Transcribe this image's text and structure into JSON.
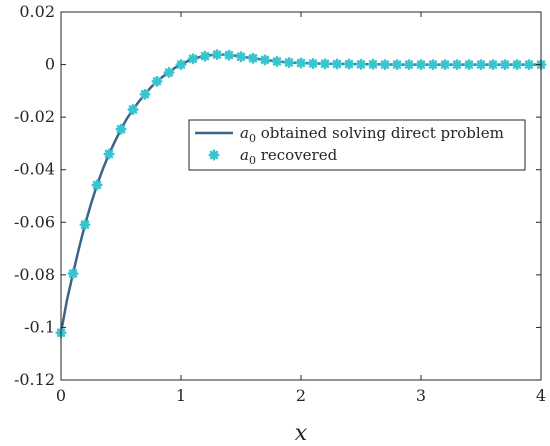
{
  "chart_data": {
    "type": "line",
    "xlabel": "x",
    "ylabel": "",
    "xlim": [
      0,
      4
    ],
    "ylim": [
      -0.12,
      0.02
    ],
    "xticks": [
      0,
      1,
      2,
      3,
      4
    ],
    "yticks": [
      0.02,
      0,
      -0.02,
      -0.04,
      -0.06,
      -0.08,
      -0.1,
      -0.12
    ],
    "xtick_labels": [
      "0",
      "1",
      "2",
      "3",
      "4"
    ],
    "ytick_labels": [
      "0.02",
      "0",
      "-0.02",
      "-0.04",
      "-0.06",
      "-0.08",
      "-0.1",
      "-0.12"
    ],
    "grid": false,
    "legend_position": "center-right",
    "series": [
      {
        "name": "a0 obtained solving direct problem",
        "name_parts": {
          "symbol": "a",
          "subscript": "0",
          "rest": " obtained solving direct problem"
        },
        "style": "line",
        "color": "#3f6384",
        "x": [
          0,
          0.05,
          0.1,
          0.15,
          0.2,
          0.25,
          0.3,
          0.35,
          0.4,
          0.45,
          0.5,
          0.55,
          0.6,
          0.65,
          0.7,
          0.75,
          0.8,
          0.85,
          0.9,
          0.95,
          1.0,
          1.05,
          1.1,
          1.15,
          1.2,
          1.25,
          1.3,
          1.35,
          1.4,
          1.45,
          1.5,
          1.6,
          1.7,
          1.8,
          1.9,
          2.0,
          2.2,
          2.4,
          2.6,
          2.8,
          3.0,
          3.2,
          3.4,
          3.6,
          3.8,
          4.0
        ],
        "y": [
          -0.102,
          -0.0895,
          -0.0795,
          -0.0698,
          -0.0609,
          -0.053,
          -0.0458,
          -0.0396,
          -0.034,
          -0.0292,
          -0.0246,
          -0.0205,
          -0.0171,
          -0.014,
          -0.0113,
          -0.0086,
          -0.0064,
          -0.0045,
          -0.003,
          -0.0012,
          0.0,
          0.0012,
          0.0022,
          0.0028,
          0.0032,
          0.0036,
          0.0038,
          0.0038,
          0.0036,
          0.0034,
          0.003,
          0.0024,
          0.0018,
          0.0012,
          0.0008,
          0.0006,
          0.0003,
          0.0002,
          0.0001,
          0.0,
          0.0,
          0.0,
          0.0,
          0.0,
          0.0,
          0.0
        ]
      },
      {
        "name": "a0 recovered",
        "name_parts": {
          "symbol": "a",
          "subscript": "0",
          "rest": " recovered"
        },
        "style": "markers",
        "marker": "asterisk",
        "color": "#36c5d1",
        "x": [
          0,
          0.1,
          0.2,
          0.3,
          0.4,
          0.5,
          0.6,
          0.7,
          0.8,
          0.9,
          1.0,
          1.1,
          1.2,
          1.3,
          1.4,
          1.5,
          1.6,
          1.7,
          1.8,
          1.9,
          2.0,
          2.1,
          2.2,
          2.3,
          2.4,
          2.5,
          2.6,
          2.7,
          2.8,
          2.9,
          3.0,
          3.1,
          3.2,
          3.3,
          3.4,
          3.5,
          3.6,
          3.7,
          3.8,
          3.9,
          4.0
        ],
        "y": [
          -0.102,
          -0.0795,
          -0.0609,
          -0.0458,
          -0.034,
          -0.0246,
          -0.0171,
          -0.0113,
          -0.0064,
          -0.003,
          0.0,
          0.0022,
          0.0032,
          0.0038,
          0.0036,
          0.003,
          0.0024,
          0.0018,
          0.0012,
          0.0008,
          0.0006,
          0.0004,
          0.0003,
          0.0002,
          0.0002,
          0.0001,
          0.0001,
          0.0,
          0.0,
          0.0,
          0.0,
          0.0,
          0.0,
          0.0,
          0.0,
          0.0,
          0.0,
          0.0,
          0.0,
          0.0,
          0.0
        ]
      }
    ]
  }
}
